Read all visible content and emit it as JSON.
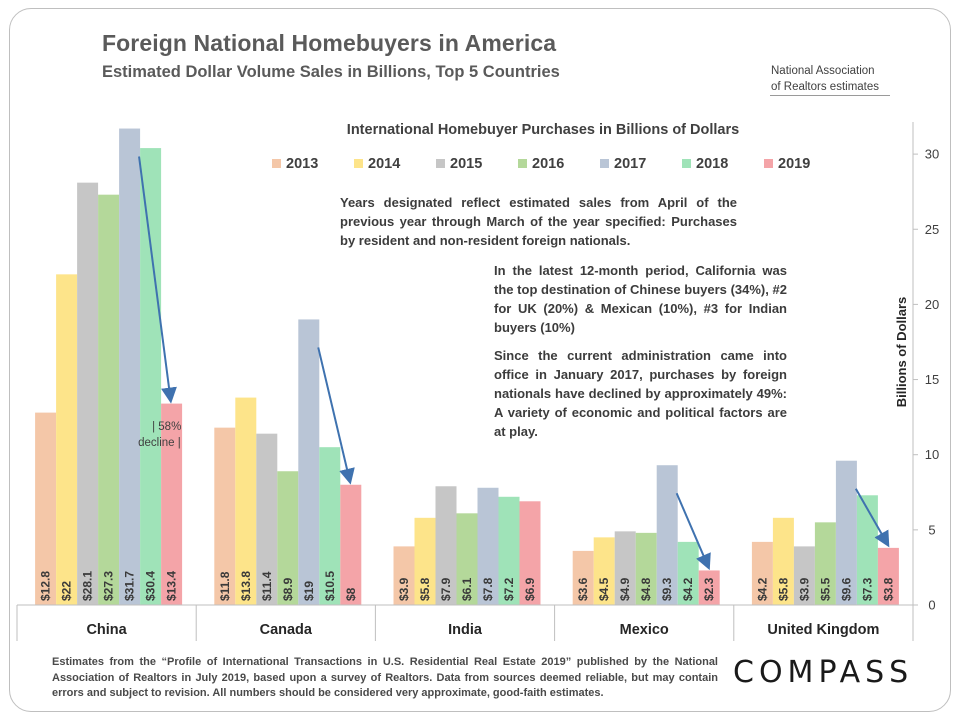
{
  "header": {
    "title": "Foreign National Homebuyers in America",
    "subtitle": "Estimated Dollar Volume Sales in Billions, Top 5 Countries",
    "source_line1": "National Association",
    "source_line2": "of Realtors estimates"
  },
  "annotations": {
    "years_note": "Years designated reflect estimated sales from April of the previous year through March of the year specified: Purchases by resident and non-resident foreign nationals.",
    "california_note": "In the latest 12-month period, California was the top destination of Chinese buyers (34%), #2 for UK (20%) & Mexican (10%), #3 for Indian buyers (10%)",
    "decline_note": "Since the current administration came into office in January 2017, purchases by foreign nationals have declined by approximately 49%: A variety of economic and political factors are at play.",
    "china_decline_line1": "| 58%",
    "china_decline_line2": "decline |"
  },
  "footer": {
    "text": "Estimates from the “Profile of International Transactions in U.S. Residential Real Estate 2019” published by the National Association of Realtors in July 2019, based upon a survey of Realtors. Data from sources deemed reliable, but may contain errors and subject to revision.  All numbers should be considered very approximate, good-faith estimates.",
    "logo": "COMPASS"
  },
  "chart_data": {
    "type": "bar",
    "title": "International Homebuyer Purchases in Billions of Dollars",
    "ylabel": "Billions of Dollars",
    "ylim": [
      0,
      32
    ],
    "yticks": [
      0,
      5,
      10,
      15,
      20,
      25,
      30
    ],
    "grid": false,
    "legend_position": "top",
    "categories": [
      "China",
      "Canada",
      "India",
      "Mexico",
      "United Kingdom"
    ],
    "series": [
      {
        "name": "2013",
        "color": "#f4c7a8",
        "values": [
          12.8,
          11.8,
          3.9,
          3.6,
          4.2
        ],
        "labels": [
          "$12.8",
          "$11.8",
          "$3.9",
          "$3.6",
          "$4.2"
        ]
      },
      {
        "name": "2014",
        "color": "#fde48a",
        "values": [
          22,
          13.8,
          5.8,
          4.5,
          5.8
        ],
        "labels": [
          "$22",
          "$13.8",
          "$5.8",
          "$4.5",
          "$5.8"
        ]
      },
      {
        "name": "2015",
        "color": "#c6c6c6",
        "values": [
          28.1,
          11.4,
          7.9,
          4.9,
          3.9
        ],
        "labels": [
          "$28.1",
          "$11.4",
          "$7.9",
          "$4.9",
          "$3.9"
        ]
      },
      {
        "name": "2016",
        "color": "#b4d89a",
        "values": [
          27.3,
          8.9,
          6.1,
          4.8,
          5.5
        ],
        "labels": [
          "$27.3",
          "$8.9",
          "$6.1",
          "$4.8",
          "$5.5"
        ]
      },
      {
        "name": "2017",
        "color": "#b9c5d6",
        "values": [
          31.7,
          19,
          7.8,
          9.3,
          9.6
        ],
        "labels": [
          "$31.7",
          "$19",
          "$7.8",
          "$9.3",
          "$9.6"
        ]
      },
      {
        "name": "2018",
        "color": "#9fe3b8",
        "values": [
          30.4,
          10.5,
          7.2,
          4.2,
          7.3
        ],
        "labels": [
          "$30.4",
          "$10.5",
          "$7.2",
          "$4.2",
          "$7.3"
        ]
      },
      {
        "name": "2019",
        "color": "#f4a4a8",
        "values": [
          13.4,
          8,
          6.9,
          2.3,
          3.8
        ],
        "labels": [
          "$13.4",
          "$8",
          "$6.9",
          "$2.3",
          "$3.8"
        ]
      }
    ],
    "trend_arrows": [
      {
        "category": "China",
        "from_series": "2017",
        "to_series": "2019"
      },
      {
        "category": "Canada",
        "from_series": "2017",
        "to_series": "2019"
      },
      {
        "category": "Mexico",
        "from_series": "2017",
        "to_series": "2019"
      },
      {
        "category": "United Kingdom",
        "from_series": "2017",
        "to_series": "2019"
      }
    ],
    "arrow_color": "#3f72af"
  }
}
